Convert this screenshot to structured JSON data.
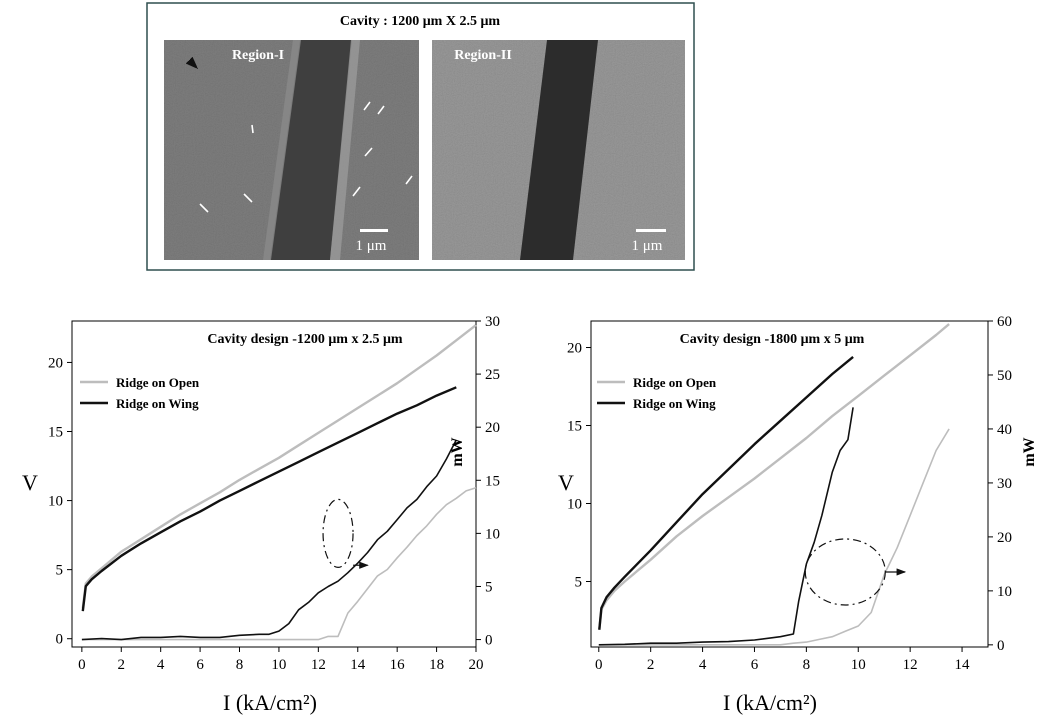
{
  "figure": {
    "title": "Cavity : 1200 μm X 2.5 μm",
    "panels": [
      {
        "label": "Region-I",
        "scale_label": "1 μm"
      },
      {
        "label": "Region-II",
        "scale_label": "1 μm"
      }
    ]
  },
  "colors": {
    "open": "#bdbdbd",
    "wing": "#111111",
    "frame": "#2f4f4f"
  },
  "chart_data": [
    {
      "type": "line",
      "title": "Cavity design -1200 μm x 2.5 μm",
      "xlabel": "I (kA/cm²)",
      "ylabel": "V",
      "y2label": "mW",
      "xlim": [
        -0.5,
        20
      ],
      "ylim": [
        -0.6,
        23
      ],
      "y2lim": [
        -0.7,
        30
      ],
      "xticks": [
        "0",
        "2",
        "4",
        "6",
        "8",
        "10",
        "12",
        "14",
        "16",
        "18",
        "20"
      ],
      "yticks": [
        "0",
        "5",
        "10",
        "15",
        "20"
      ],
      "y2ticks": [
        "0",
        "5",
        "10",
        "15",
        "20",
        "25",
        "30"
      ],
      "legend": {
        "position": "top-left",
        "entries": [
          "Ridge on Open",
          "Ridge on Wing"
        ]
      },
      "series": [
        {
          "name": "Ridge on Open",
          "axis": "left",
          "color": "#bdbdbd",
          "x": [
            0.05,
            0.2,
            0.5,
            1,
            2,
            3,
            4,
            5,
            6,
            7,
            8,
            9,
            10,
            11,
            12,
            13,
            14,
            15,
            16,
            17,
            18,
            19,
            20
          ],
          "values": [
            2.2,
            4.0,
            4.5,
            5.1,
            6.3,
            7.2,
            8.1,
            9.0,
            9.8,
            10.6,
            11.5,
            12.3,
            13.1,
            14.0,
            14.9,
            15.8,
            16.7,
            17.6,
            18.5,
            19.5,
            20.5,
            21.6,
            22.7
          ]
        },
        {
          "name": "Ridge on Wing",
          "axis": "left",
          "color": "#111111",
          "x": [
            0.05,
            0.2,
            0.5,
            1,
            2,
            3,
            4,
            5,
            6,
            7,
            8,
            9,
            10,
            11,
            12,
            13,
            14,
            15,
            16,
            17,
            18,
            19
          ],
          "values": [
            2.0,
            3.8,
            4.3,
            4.9,
            6.0,
            6.9,
            7.7,
            8.5,
            9.2,
            10.0,
            10.7,
            11.4,
            12.1,
            12.8,
            13.5,
            14.2,
            14.9,
            15.6,
            16.3,
            16.9,
            17.6,
            18.2
          ]
        },
        {
          "name": "Ridge on Open",
          "axis": "right",
          "color": "#bdbdbd",
          "x": [
            0,
            2,
            4,
            6,
            8,
            10,
            10.5,
            11,
            11.5,
            12,
            12.5,
            13,
            13.5,
            14,
            14.5,
            15,
            15.5,
            16,
            16.5,
            17,
            17.5,
            18,
            18.5,
            19,
            19.5,
            20
          ],
          "values": [
            0,
            0,
            0,
            0,
            0,
            0,
            0,
            0,
            0,
            0,
            0.3,
            0.3,
            2.5,
            3.6,
            4.8,
            6.0,
            6.6,
            7.7,
            8.7,
            9.8,
            10.7,
            11.8,
            12.7,
            13.3,
            14.0,
            14.3
          ]
        },
        {
          "name": "Ridge on Wing",
          "axis": "right",
          "color": "#111111",
          "x": [
            0,
            1,
            2,
            3,
            4,
            5,
            6,
            7,
            8,
            9,
            9.5,
            10,
            10.5,
            11,
            11.5,
            12,
            12.5,
            13,
            13.5,
            14,
            14.5,
            15,
            15.5,
            16,
            16.5,
            17,
            17.5,
            18,
            18.5,
            19
          ],
          "values": [
            0,
            0.1,
            0,
            0.2,
            0.2,
            0.3,
            0.2,
            0.2,
            0.4,
            0.5,
            0.5,
            0.8,
            1.5,
            2.8,
            3.5,
            4.4,
            5.0,
            5.5,
            6.3,
            7.2,
            8.2,
            9.4,
            10.2,
            11.3,
            12.4,
            13.2,
            14.4,
            15.4,
            17.0,
            18.8
          ]
        }
      ],
      "annotation": {
        "ellipse_center": [
          13.0,
          10.0
        ],
        "arrow_to": [
          14.5,
          7.0
        ]
      }
    },
    {
      "type": "line",
      "title": "Cavity design -1800 μm x 5 μm",
      "xlabel": "I (kA/cm²)",
      "ylabel": "V",
      "y2label": "mW",
      "xlim": [
        -0.3,
        15
      ],
      "ylim": [
        0.8,
        21.7
      ],
      "y2lim": [
        -0.4,
        60
      ],
      "xticks": [
        "0",
        "2",
        "4",
        "6",
        "8",
        "10",
        "12",
        "14"
      ],
      "yticks": [
        "5",
        "10",
        "15",
        "20"
      ],
      "y2ticks": [
        "0",
        "10",
        "20",
        "30",
        "40",
        "50",
        "60"
      ],
      "legend": {
        "position": "top-left",
        "entries": [
          "Ridge on Open",
          "Ridge on Wing"
        ]
      },
      "series": [
        {
          "name": "Ridge on Open",
          "axis": "left",
          "color": "#bdbdbd",
          "x": [
            0.02,
            0.1,
            0.3,
            0.6,
            1,
            2,
            3,
            4,
            5,
            6,
            7,
            8,
            9,
            10,
            11,
            12,
            13,
            13.5
          ],
          "values": [
            1.9,
            3.2,
            3.8,
            4.4,
            5.0,
            6.4,
            7.9,
            9.2,
            10.4,
            11.6,
            12.9,
            14.2,
            15.6,
            16.9,
            18.2,
            19.5,
            20.8,
            21.5
          ]
        },
        {
          "name": "Ridge on Wing",
          "axis": "left",
          "color": "#111111",
          "x": [
            0.02,
            0.1,
            0.3,
            0.6,
            1,
            2,
            3,
            4,
            5,
            6,
            7,
            8,
            9,
            9.8
          ],
          "values": [
            1.9,
            3.3,
            4.0,
            4.6,
            5.3,
            7.0,
            8.8,
            10.6,
            12.2,
            13.8,
            15.3,
            16.8,
            18.3,
            19.4
          ]
        },
        {
          "name": "Ridge on Open",
          "axis": "right",
          "color": "#bdbdbd",
          "x": [
            0,
            2,
            4,
            6,
            7,
            7.5,
            8,
            8.5,
            9,
            9.5,
            10,
            10.5,
            11,
            11.5,
            12,
            12.5,
            13,
            13.5
          ],
          "values": [
            0,
            0,
            0,
            0,
            0,
            0.3,
            0.5,
            1.0,
            1.5,
            2.5,
            3.5,
            6.0,
            13.0,
            18.0,
            24.0,
            30.0,
            36.0,
            40.0
          ]
        },
        {
          "name": "Ridge on Wing",
          "axis": "right",
          "color": "#111111",
          "x": [
            0,
            1,
            2,
            3,
            4,
            5,
            6,
            7,
            7.5,
            7.7,
            8,
            8.3,
            8.6,
            9,
            9.3,
            9.6,
            9.8
          ],
          "values": [
            0,
            0.1,
            0.3,
            0.3,
            0.5,
            0.6,
            0.9,
            1.5,
            2.0,
            8.0,
            15.0,
            19.0,
            24.0,
            32.0,
            36.0,
            38.0,
            44.0
          ]
        }
      ],
      "annotation": {
        "ellipse_center": [
          9.5,
          13.5
        ],
        "arrow_to": [
          11.8,
          13.5
        ]
      }
    }
  ]
}
